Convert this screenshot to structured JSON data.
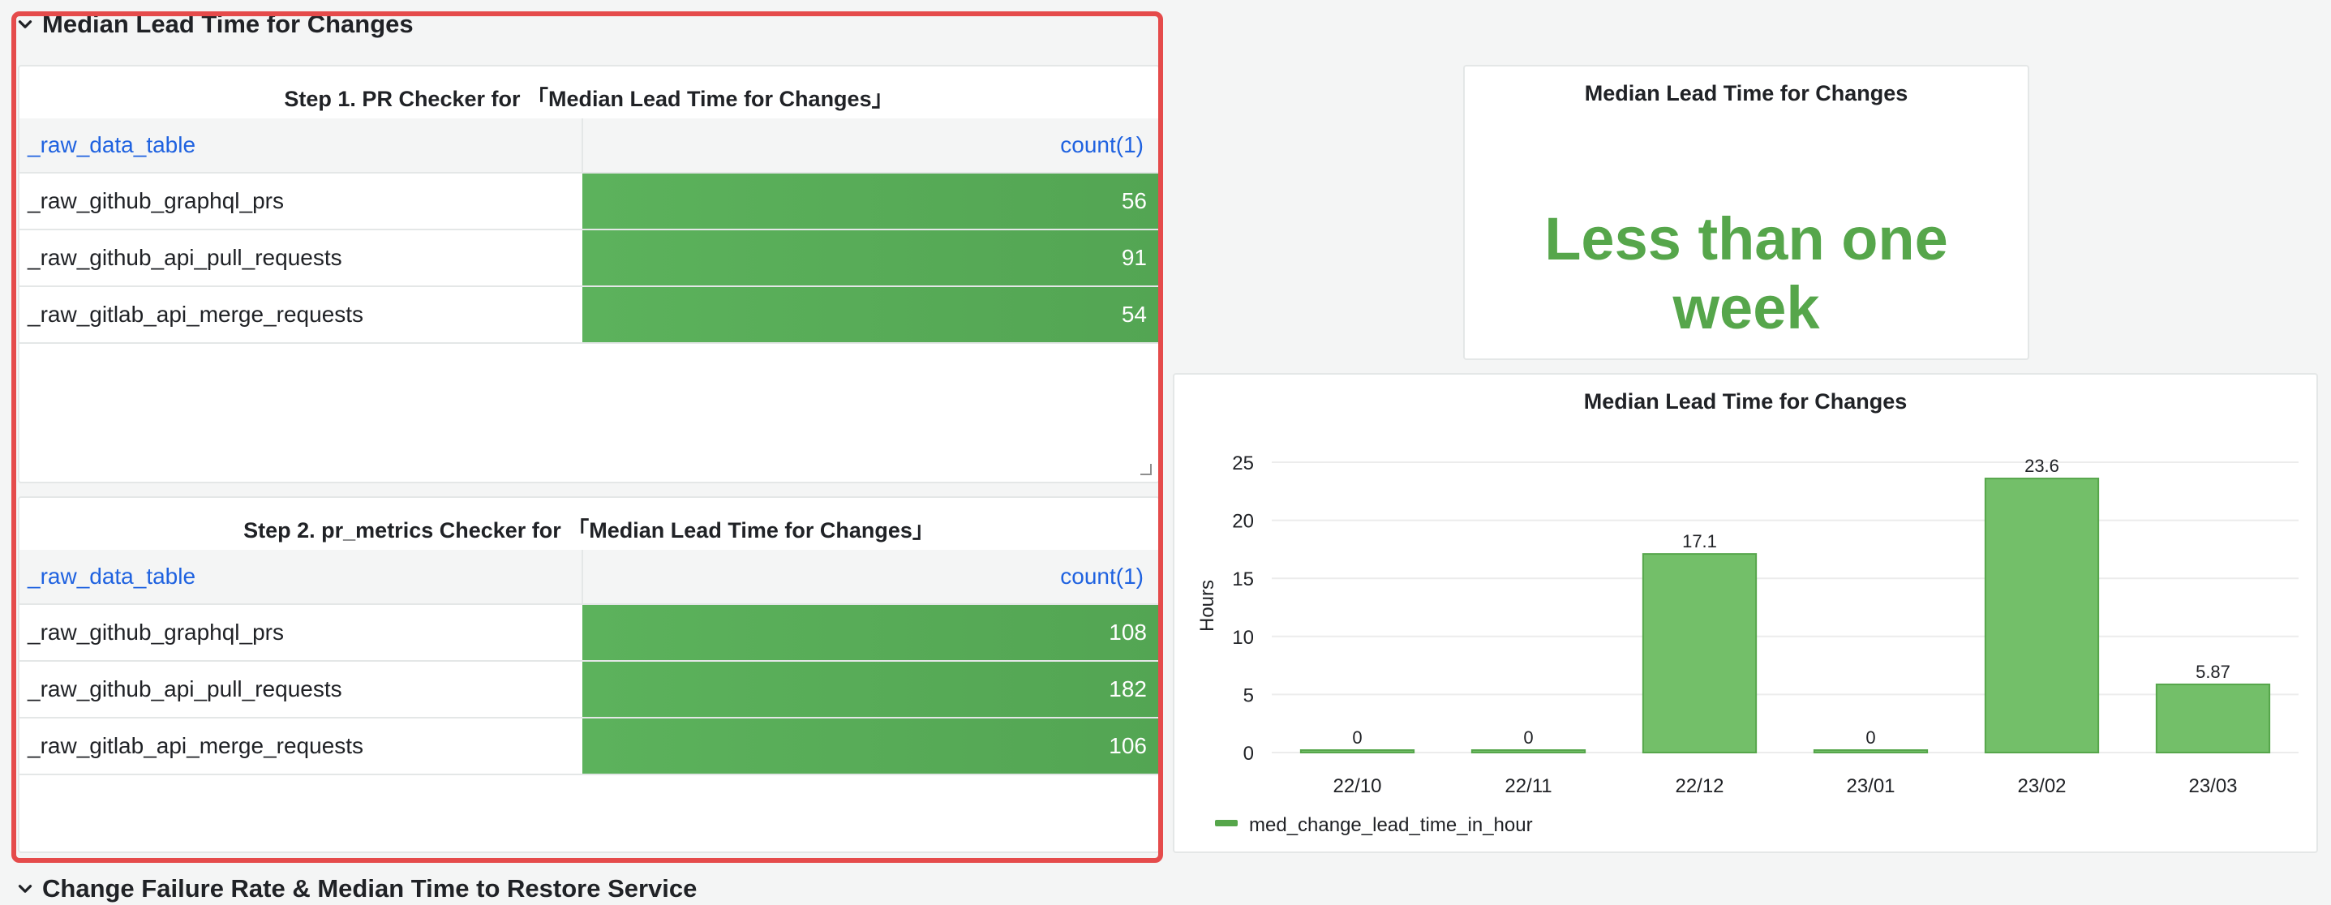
{
  "rows": {
    "lead_time": "Median Lead Time for Changes",
    "failure": "Change Failure Rate & Median Time to Restore Service"
  },
  "step1": {
    "title": "Step 1. PR Checker for 「Median Lead Time for Changes」",
    "col_table": "_raw_data_table",
    "col_count": "count(1)",
    "rows": [
      {
        "name": "_raw_github_graphql_prs",
        "count": "56"
      },
      {
        "name": "_raw_github_api_pull_requests",
        "count": "91"
      },
      {
        "name": "_raw_gitlab_api_merge_requests",
        "count": "54"
      }
    ]
  },
  "step2": {
    "title": "Step 2. pr_metrics Checker for 「Median Lead Time for Changes」",
    "col_table": "_raw_data_table",
    "col_count": "count(1)",
    "rows": [
      {
        "name": "_raw_github_graphql_prs",
        "count": "108"
      },
      {
        "name": "_raw_github_api_pull_requests",
        "count": "182"
      },
      {
        "name": "_raw_gitlab_api_merge_requests",
        "count": "106"
      }
    ]
  },
  "stat": {
    "title": "Median Lead Time for Changes",
    "value": "Less than one week",
    "color": "#56a64b"
  },
  "chart_data": {
    "type": "bar",
    "title": "Median Lead Time for Changes",
    "ylabel": "Hours",
    "xlabel": "",
    "categories": [
      "22/10",
      "22/11",
      "22/12",
      "23/01",
      "23/02",
      "23/03"
    ],
    "series": [
      {
        "name": "med_change_lead_time_in_hour",
        "values": [
          0,
          0,
          17.1,
          0,
          23.6,
          5.87
        ]
      }
    ],
    "value_labels": [
      "0",
      "0",
      "17.1",
      "0",
      "23.6",
      "5.87"
    ],
    "ylim": [
      0,
      25
    ],
    "yticks": [
      "0",
      "5",
      "10",
      "15",
      "20",
      "25"
    ],
    "grid": true,
    "legend": "bottom-left",
    "bar_color": "#73bf69",
    "bar_border": "#56a64b"
  }
}
